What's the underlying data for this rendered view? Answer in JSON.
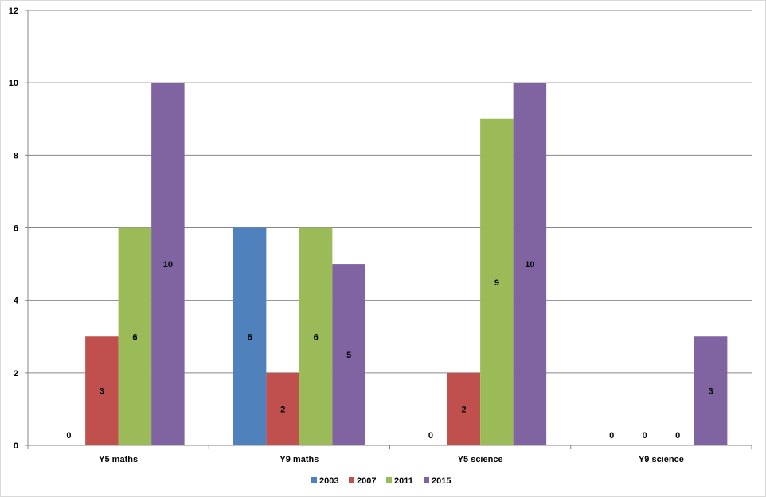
{
  "chart_data": {
    "type": "bar",
    "title": "",
    "xlabel": "",
    "ylabel": "",
    "ylim": [
      0,
      12
    ],
    "yticks": [
      0,
      2,
      4,
      6,
      8,
      10,
      12
    ],
    "grid": true,
    "legend_position": "bottom",
    "categories": [
      "Y5 maths",
      "Y9 maths",
      "Y5 science",
      "Y9 science"
    ],
    "series": [
      {
        "name": "2003",
        "color": "#4f81bd",
        "values": [
          0,
          6,
          0,
          0
        ]
      },
      {
        "name": "2007",
        "color": "#c0504d",
        "values": [
          3,
          2,
          2,
          0
        ]
      },
      {
        "name": "2011",
        "color": "#9bbb59",
        "values": [
          6,
          6,
          9,
          0
        ]
      },
      {
        "name": "2015",
        "color": "#8064a2",
        "values": [
          10,
          5,
          10,
          3
        ]
      }
    ]
  }
}
